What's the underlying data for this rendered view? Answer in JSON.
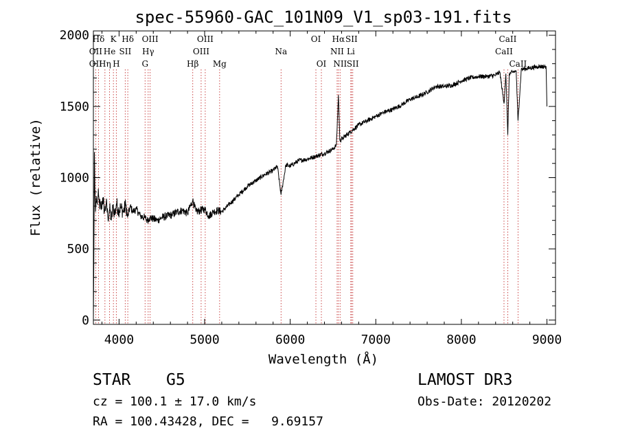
{
  "chart_data": {
    "type": "line",
    "title": "spec-55960-GAC_101N09_V1_sp03-191.fits",
    "xlabel": "Wavelength (Å)",
    "ylabel": "Flux (relative)",
    "xlim": [
      3700,
      9100
    ],
    "ylim": [
      -30,
      2030
    ],
    "x_ticks": [
      4000,
      5000,
      6000,
      7000,
      8000,
      9000
    ],
    "x_tick_labels": [
      "4000",
      "5000",
      "6000",
      "7000",
      "8000",
      "9000"
    ],
    "y_ticks": [
      0,
      500,
      1000,
      1500,
      2000
    ],
    "y_tick_labels": [
      "0",
      "500",
      "1000",
      "1500",
      "2000"
    ],
    "series": [
      {
        "name": "spectrum",
        "x": [
          3700,
          3705,
          3712,
          3718,
          3725,
          3735,
          3745,
          3755,
          3770,
          3790,
          3810,
          3830,
          3850,
          3870,
          3890,
          3910,
          3930,
          3950,
          3970,
          3990,
          4020,
          4050,
          4080,
          4100,
          4130,
          4160,
          4200,
          4250,
          4300,
          4330,
          4360,
          4400,
          4450,
          4500,
          4560,
          4620,
          4680,
          4740,
          4800,
          4861,
          4900,
          4950,
          5000,
          5050,
          5100,
          5150,
          5200,
          5300,
          5400,
          5500,
          5600,
          5700,
          5800,
          5850,
          5893,
          5950,
          6000,
          6100,
          6200,
          6300,
          6400,
          6500,
          6540,
          6563,
          6580,
          6620,
          6700,
          6800,
          6900,
          7000,
          7100,
          7200,
          7300,
          7400,
          7500,
          7600,
          7700,
          7800,
          7900,
          8000,
          8100,
          8200,
          8300,
          8400,
          8450,
          8498,
          8520,
          8542,
          8560,
          8600,
          8640,
          8662,
          8700,
          8800,
          8900,
          8990,
          9000
        ],
        "y": [
          0,
          380,
          1180,
          900,
          760,
          870,
          810,
          880,
          820,
          780,
          860,
          760,
          820,
          720,
          780,
          700,
          800,
          740,
          820,
          770,
          790,
          760,
          810,
          720,
          800,
          760,
          780,
          730,
          720,
          700,
          720,
          710,
          700,
          720,
          730,
          740,
          760,
          770,
          750,
          840,
          760,
          770,
          780,
          730,
          760,
          770,
          760,
          820,
          880,
          940,
          980,
          1020,
          1050,
          1080,
          880,
          1090,
          1080,
          1120,
          1130,
          1150,
          1170,
          1200,
          1230,
          1580,
          1260,
          1280,
          1320,
          1370,
          1400,
          1430,
          1460,
          1480,
          1510,
          1550,
          1570,
          1600,
          1640,
          1640,
          1650,
          1680,
          1700,
          1710,
          1710,
          1720,
          1740,
          1520,
          1730,
          1300,
          1730,
          1740,
          1750,
          1400,
          1760,
          1770,
          1780,
          1780,
          1500
        ]
      }
    ],
    "spectral_lines": [
      {
        "label": "Hδ",
        "x": 4102,
        "row": 0
      },
      {
        "label": "K",
        "x": 3934,
        "row": 0
      },
      {
        "label": "Hδ",
        "x": 3760,
        "row": 0
      },
      {
        "label": "OII",
        "x": 3727,
        "row": 1
      },
      {
        "label": "He",
        "x": 3889,
        "row": 1
      },
      {
        "label": "SII",
        "x": 4072,
        "row": 1
      },
      {
        "label": "OII",
        "x": 3727,
        "row": 2
      },
      {
        "label": "Hη",
        "x": 3835,
        "row": 2
      },
      {
        "label": "H",
        "x": 3968,
        "row": 2
      },
      {
        "label": "OIII",
        "x": 4363,
        "row": 0
      },
      {
        "label": "Hγ",
        "x": 4340,
        "row": 1
      },
      {
        "label": "G",
        "x": 4304,
        "row": 2
      },
      {
        "label": "Hβ",
        "x": 4861,
        "row": 2
      },
      {
        "label": "OIII",
        "x": 5007,
        "row": 0
      },
      {
        "label": "OIII",
        "x": 4959,
        "row": 1
      },
      {
        "label": "Mg",
        "x": 5175,
        "row": 2
      },
      {
        "label": "Na",
        "x": 5893,
        "row": 1
      },
      {
        "label": "OI",
        "x": 6300,
        "row": 0
      },
      {
        "label": "OI",
        "x": 6364,
        "row": 2
      },
      {
        "label": "Hα",
        "x": 6563,
        "row": 0
      },
      {
        "label": "NII",
        "x": 6548,
        "row": 1
      },
      {
        "label": "NII",
        "x": 6583,
        "row": 2
      },
      {
        "label": "SII",
        "x": 6716,
        "row": 0
      },
      {
        "label": "Li",
        "x": 6708,
        "row": 1
      },
      {
        "label": "SII",
        "x": 6731,
        "row": 2
      },
      {
        "label": "CaII",
        "x": 8542,
        "row": 0
      },
      {
        "label": "CaII",
        "x": 8498,
        "row": 1
      },
      {
        "label": "CaII",
        "x": 8662,
        "row": 2
      }
    ]
  },
  "info": {
    "object_class": "STAR",
    "subclass": "G5",
    "survey": "LAMOST DR3",
    "redshift": "cz = 100.1 ± 17.0 km/s",
    "obs_date": "Obs-Date: 20120202",
    "coords": "RA = 100.43428, DEC =   9.69157"
  }
}
